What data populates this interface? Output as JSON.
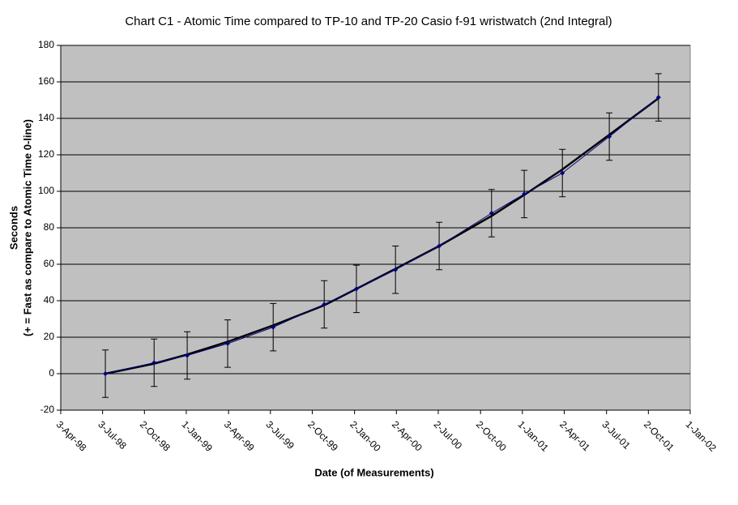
{
  "chart_data": {
    "type": "line",
    "title": "Chart C1 - Atomic Time compared to TP-10 and TP-20 Casio f-91 wristwatch (2nd Integral)",
    "x_label": "Date (of Measurements)",
    "y_label": [
      "Seconds",
      "(+ = Fast as compare to Atomic Time 0-line)"
    ],
    "x": [
      "1998-07-09",
      "1998-10-23",
      "1999-01-03",
      "1999-04-01",
      "1999-07-09",
      "1999-10-28",
      "2000-01-06",
      "2000-03-31",
      "2000-07-04",
      "2000-10-26",
      "2001-01-05",
      "2001-03-29",
      "2001-07-09",
      "2001-10-24"
    ],
    "series": [
      {
        "color": "#000080",
        "values": [
          0,
          6,
          10,
          16.5,
          25.5,
          38,
          46.5,
          57,
          70,
          88,
          98.5,
          110,
          130,
          151.5
        ],
        "errors": [
          13,
          13,
          13,
          13,
          13,
          13,
          13,
          13,
          13,
          13,
          13,
          13,
          13,
          13
        ]
      },
      {
        "color": "#000000",
        "values": [
          0,
          5.5,
          10.5,
          17.5,
          26.5,
          37.5,
          46.5,
          57.5,
          70,
          86.5,
          98,
          112,
          131,
          151
        ]
      }
    ],
    "xlim": [
      "1998-04-03",
      "2002-01-01"
    ],
    "xticks": [
      {
        "value": "1998-04-03",
        "label": "3-Apr-98"
      },
      {
        "value": "1998-07-03",
        "label": "3-Jul-98"
      },
      {
        "value": "1998-10-02",
        "label": "2-Oct-98"
      },
      {
        "value": "1999-01-01",
        "label": "1-Jan-99"
      },
      {
        "value": "1999-04-03",
        "label": "3-Apr-99"
      },
      {
        "value": "1999-07-03",
        "label": "3-Jul-99"
      },
      {
        "value": "1999-10-02",
        "label": "2-Oct-99"
      },
      {
        "value": "2000-01-02",
        "label": "2-Jan-00"
      },
      {
        "value": "2000-04-02",
        "label": "2-Apr-00"
      },
      {
        "value": "2000-07-02",
        "label": "2-Jul-00"
      },
      {
        "value": "2000-10-02",
        "label": "2-Oct-00"
      },
      {
        "value": "2001-01-01",
        "label": "1-Jan-01"
      },
      {
        "value": "2001-04-02",
        "label": "2-Apr-01"
      },
      {
        "value": "2001-07-03",
        "label": "3-Jul-01"
      },
      {
        "value": "2001-10-02",
        "label": "2-Oct-01"
      },
      {
        "value": "2002-01-01",
        "label": "1-Jan-02"
      }
    ],
    "ylim": [
      -20,
      180
    ],
    "yticks": [
      -20,
      0,
      20,
      40,
      60,
      80,
      100,
      120,
      140,
      160,
      180
    ],
    "grid": true,
    "plot_background": "#c0c0c0"
  }
}
